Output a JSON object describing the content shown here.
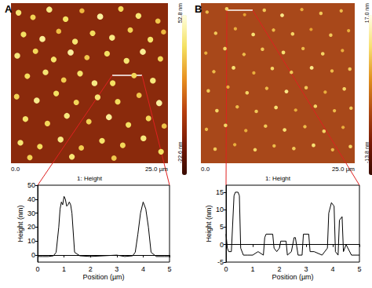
{
  "chart_data": [
    {
      "type": "scatter",
      "title": "A",
      "xlabel": "1: Height",
      "xlim": [
        0,
        25
      ],
      "xticks": [
        {
          "value": 0,
          "label": "0.0"
        },
        {
          "value": 25,
          "label": "25.0 µm"
        }
      ],
      "ylim": [
        0,
        25
      ],
      "tick_labels": "x",
      "marker": "circle",
      "colorbar": {
        "range": [
          -22.6,
          52.8
        ],
        "ticks": [
          {
            "value": -22.6,
            "label": "-22.6 nm"
          },
          {
            "value": 52.8,
            "label": "52.8 nm"
          }
        ]
      },
      "points": [
        [
          1.2,
          23.5,
          40
        ],
        [
          3.5,
          22.8,
          35
        ],
        [
          6.1,
          24.0,
          42
        ],
        [
          8.7,
          22.5,
          38
        ],
        [
          11.3,
          23.8,
          30
        ],
        [
          14.2,
          22.9,
          45
        ],
        [
          17.5,
          24.1,
          36
        ],
        [
          20.3,
          23.0,
          40
        ],
        [
          23.4,
          22.2,
          33
        ],
        [
          2.0,
          20.1,
          38
        ],
        [
          5.0,
          19.4,
          44
        ],
        [
          7.6,
          20.6,
          31
        ],
        [
          10.2,
          19.0,
          40
        ],
        [
          13.0,
          20.3,
          37
        ],
        [
          16.1,
          19.6,
          42
        ],
        [
          19.0,
          20.8,
          35
        ],
        [
          22.2,
          19.3,
          39
        ],
        [
          24.3,
          20.5,
          30
        ],
        [
          1.0,
          16.8,
          41
        ],
        [
          3.9,
          17.5,
          36
        ],
        [
          6.8,
          16.2,
          39
        ],
        [
          9.5,
          17.3,
          45
        ],
        [
          12.1,
          16.5,
          33
        ],
        [
          15.3,
          17.1,
          38
        ],
        [
          18.4,
          16.0,
          40
        ],
        [
          21.0,
          17.4,
          44
        ],
        [
          23.8,
          16.3,
          36
        ],
        [
          2.6,
          13.6,
          37
        ],
        [
          5.5,
          14.2,
          40
        ],
        [
          8.4,
          13.0,
          34
        ],
        [
          11.0,
          14.0,
          39
        ],
        [
          13.3,
          12.5,
          42
        ],
        [
          16.2,
          12.5,
          38
        ],
        [
          19.6,
          13.7,
          36
        ],
        [
          22.6,
          12.9,
          41
        ],
        [
          0.9,
          10.4,
          35
        ],
        [
          4.1,
          9.8,
          43
        ],
        [
          7.2,
          10.9,
          38
        ],
        [
          10.4,
          9.5,
          36
        ],
        [
          13.8,
          10.3,
          40
        ],
        [
          17.0,
          9.6,
          37
        ],
        [
          20.4,
          10.6,
          33
        ],
        [
          23.6,
          9.4,
          45
        ],
        [
          2.3,
          6.9,
          39
        ],
        [
          5.8,
          6.2,
          36
        ],
        [
          8.9,
          7.4,
          41
        ],
        [
          12.4,
          6.5,
          35
        ],
        [
          15.6,
          7.2,
          44
        ],
        [
          18.7,
          6.0,
          38
        ],
        [
          21.9,
          7.0,
          36
        ],
        [
          24.4,
          5.8,
          32
        ],
        [
          1.5,
          3.2,
          40
        ],
        [
          4.6,
          2.6,
          37
        ],
        [
          7.9,
          3.7,
          42
        ],
        [
          11.2,
          2.4,
          34
        ],
        [
          14.5,
          3.5,
          39
        ],
        [
          17.8,
          2.8,
          36
        ],
        [
          21.1,
          3.9,
          41
        ],
        [
          23.9,
          1.8,
          38
        ],
        [
          3.0,
          0.9,
          35
        ],
        [
          9.7,
          1.0,
          40
        ],
        [
          16.4,
          0.8,
          33
        ]
      ]
    },
    {
      "type": "line",
      "xlabel": "Position (µm)",
      "ylabel": "Height (nm)",
      "xlim": [
        0,
        5
      ],
      "xticks": [
        0,
        1,
        2,
        3,
        4,
        5
      ],
      "ylim": [
        -5,
        50
      ],
      "yticks": [
        0,
        10,
        20,
        30,
        40,
        50
      ],
      "grid": false,
      "color": "#000000",
      "line_style": "solid",
      "x": [
        0,
        0.2,
        0.4,
        0.6,
        0.7,
        0.8,
        0.85,
        0.9,
        0.95,
        1.0,
        1.05,
        1.1,
        1.15,
        1.2,
        1.25,
        1.3,
        1.4,
        1.6,
        2,
        2.5,
        3,
        3.3,
        3.6,
        3.7,
        3.8,
        3.9,
        4.0,
        4.1,
        4.2,
        4.3,
        4.5,
        4.8,
        5
      ],
      "values": [
        -1,
        -1,
        -1,
        -0.5,
        2,
        20,
        33,
        38,
        36,
        42,
        40,
        35,
        36,
        38,
        36,
        30,
        2,
        -0.5,
        -1,
        -0.5,
        0,
        -1,
        -0.5,
        2,
        15,
        30,
        38,
        33,
        20,
        2,
        -1,
        -1,
        -1
      ]
    },
    {
      "type": "scatter",
      "title": "B",
      "xlabel": "1: Height",
      "xlim": [
        0,
        25
      ],
      "xticks": [
        {
          "value": 0,
          "label": "0.0"
        },
        {
          "value": 25,
          "label": "25.0 µm"
        }
      ],
      "ylim": [
        0,
        25
      ],
      "tick_labels": "x",
      "marker": "circle",
      "colorbar": {
        "range": [
          -13.8,
          17.0
        ],
        "ticks": [
          {
            "value": -13.8,
            "label": "-13.8 nm"
          },
          {
            "value": 17.0,
            "label": "17.0 nm"
          }
        ]
      },
      "points": [
        [
          1.0,
          23.6,
          8
        ],
        [
          4.2,
          24.1,
          10
        ],
        [
          7.1,
          23.2,
          6
        ],
        [
          10.3,
          23.9,
          9
        ],
        [
          13.2,
          23.1,
          12
        ],
        [
          16.4,
          24.0,
          7
        ],
        [
          19.5,
          23.4,
          9
        ],
        [
          22.8,
          23.8,
          8
        ],
        [
          2.4,
          20.3,
          9
        ],
        [
          5.6,
          21.0,
          7
        ],
        [
          8.5,
          20.1,
          11
        ],
        [
          11.8,
          20.8,
          8
        ],
        [
          14.9,
          20.2,
          10
        ],
        [
          17.9,
          20.9,
          6
        ],
        [
          21.1,
          20.0,
          9
        ],
        [
          24.0,
          20.7,
          7
        ],
        [
          0.8,
          17.2,
          7
        ],
        [
          3.9,
          17.9,
          10
        ],
        [
          7.0,
          17.0,
          8
        ],
        [
          10.0,
          17.8,
          9
        ],
        [
          13.4,
          17.3,
          11
        ],
        [
          16.6,
          17.9,
          8
        ],
        [
          19.8,
          17.1,
          10
        ],
        [
          23.0,
          17.6,
          7
        ],
        [
          2.1,
          14.3,
          8
        ],
        [
          5.3,
          14.9,
          11
        ],
        [
          8.6,
          14.1,
          7
        ],
        [
          11.6,
          14.8,
          10
        ],
        [
          14.7,
          14.2,
          9
        ],
        [
          18.0,
          14.9,
          12
        ],
        [
          21.3,
          14.4,
          8
        ],
        [
          24.2,
          14.7,
          9
        ],
        [
          1.2,
          11.3,
          9
        ],
        [
          4.4,
          11.9,
          7
        ],
        [
          7.5,
          11.0,
          10
        ],
        [
          10.7,
          11.7,
          8
        ],
        [
          13.9,
          11.2,
          12
        ],
        [
          17.1,
          11.8,
          9
        ],
        [
          20.2,
          11.1,
          7
        ],
        [
          23.3,
          11.6,
          10
        ],
        [
          2.6,
          8.2,
          10
        ],
        [
          5.9,
          8.8,
          8
        ],
        [
          9.0,
          8.1,
          9
        ],
        [
          12.2,
          8.7,
          11
        ],
        [
          15.4,
          8.3,
          7
        ],
        [
          18.6,
          8.9,
          10
        ],
        [
          21.7,
          8.2,
          8
        ],
        [
          24.4,
          8.6,
          9
        ],
        [
          0.9,
          5.3,
          8
        ],
        [
          4.0,
          5.9,
          10
        ],
        [
          7.3,
          5.1,
          7
        ],
        [
          10.5,
          5.8,
          9
        ],
        [
          13.6,
          5.2,
          11
        ],
        [
          16.9,
          5.7,
          8
        ],
        [
          20.0,
          5.0,
          10
        ],
        [
          23.1,
          5.6,
          7
        ],
        [
          2.3,
          2.2,
          9
        ],
        [
          5.5,
          2.9,
          7
        ],
        [
          8.8,
          2.1,
          10
        ],
        [
          11.9,
          2.7,
          8
        ],
        [
          15.1,
          2.3,
          9
        ],
        [
          18.3,
          2.8,
          11
        ],
        [
          21.4,
          2.1,
          8
        ],
        [
          24.3,
          2.6,
          10
        ]
      ]
    },
    {
      "type": "line",
      "xlabel": "Position (µm)",
      "ylabel": "Height (nm)",
      "xlim": [
        0,
        5
      ],
      "xticks": [
        0,
        1,
        2,
        3,
        4,
        5
      ],
      "ylim": [
        -5,
        17
      ],
      "yticks": [
        -5,
        0,
        5,
        10,
        15
      ],
      "grid": false,
      "color": "#000000",
      "line_style": "solid",
      "x": [
        0,
        0.05,
        0.1,
        0.2,
        0.3,
        0.35,
        0.45,
        0.5,
        0.55,
        0.65,
        0.8,
        1.0,
        1.2,
        1.4,
        1.45,
        1.5,
        1.75,
        1.8,
        1.9,
        2.0,
        2.05,
        2.25,
        2.3,
        2.45,
        2.55,
        2.6,
        2.7,
        2.85,
        2.9,
        3.1,
        3.15,
        3.3,
        3.6,
        3.8,
        3.85,
        3.95,
        4.05,
        4.1,
        4.2,
        4.25,
        4.35,
        4.4,
        4.5,
        4.7,
        5
      ],
      "values": [
        3,
        -1,
        -2,
        -2,
        14,
        15,
        15,
        14,
        -1,
        -3,
        -3,
        -3,
        -2,
        -3,
        2,
        3,
        3,
        -1,
        -2,
        -1,
        1,
        1,
        -3,
        -2,
        2,
        2,
        -3,
        -3,
        3,
        3,
        -2,
        -2,
        -3,
        -1,
        9,
        12,
        11,
        -2,
        -3,
        7,
        8,
        -2,
        0,
        -3,
        -3
      ]
    }
  ]
}
